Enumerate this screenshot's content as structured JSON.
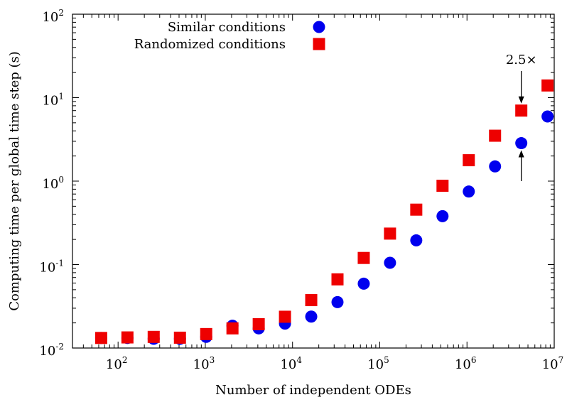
{
  "chart_data": {
    "type": "scatter",
    "title": "",
    "xlabel": "Number of independent ODEs",
    "ylabel": "Computing time per global time step (s)",
    "xscale": "log",
    "yscale": "log",
    "xlim": [
      30,
      10000000
    ],
    "ylim": [
      0.01,
      100
    ],
    "x_ticks": [
      {
        "base": "10",
        "exp": "2",
        "value": 100
      },
      {
        "base": "10",
        "exp": "3",
        "value": 1000
      },
      {
        "base": "10",
        "exp": "4",
        "value": 10000
      },
      {
        "base": "10",
        "exp": "5",
        "value": 100000
      },
      {
        "base": "10",
        "exp": "6",
        "value": 1000000
      },
      {
        "base": "10",
        "exp": "7",
        "value": 10000000
      }
    ],
    "y_ticks": [
      {
        "base": "10",
        "exp": "-2",
        "value": 0.01
      },
      {
        "base": "10",
        "exp": "-1",
        "value": 0.1
      },
      {
        "base": "10",
        "exp": "0",
        "value": 1
      },
      {
        "base": "10",
        "exp": "1",
        "value": 10
      },
      {
        "base": "10",
        "exp": "2",
        "value": 100
      }
    ],
    "grid": false,
    "legend_position": "top-left",
    "series": [
      {
        "name": "Similar conditions",
        "marker": "circle",
        "color": "#0000ee",
        "points": [
          {
            "x": 64,
            "y": 0.0132
          },
          {
            "x": 128,
            "y": 0.0132
          },
          {
            "x": 256,
            "y": 0.0129
          },
          {
            "x": 512,
            "y": 0.0129
          },
          {
            "x": 1024,
            "y": 0.0136
          },
          {
            "x": 2048,
            "y": 0.0185
          },
          {
            "x": 4096,
            "y": 0.0172
          },
          {
            "x": 8192,
            "y": 0.0196
          },
          {
            "x": 16384,
            "y": 0.0238
          },
          {
            "x": 32768,
            "y": 0.0355
          },
          {
            "x": 65536,
            "y": 0.059
          },
          {
            "x": 131072,
            "y": 0.105
          },
          {
            "x": 262144,
            "y": 0.195
          },
          {
            "x": 524288,
            "y": 0.38
          },
          {
            "x": 1048576,
            "y": 0.75
          },
          {
            "x": 2097152,
            "y": 1.5
          },
          {
            "x": 4194304,
            "y": 2.85
          },
          {
            "x": 8388608,
            "y": 5.95
          }
        ]
      },
      {
        "name": "Randomized conditions",
        "marker": "square",
        "color": "#ee0000",
        "points": [
          {
            "x": 64,
            "y": 0.0132
          },
          {
            "x": 128,
            "y": 0.0134
          },
          {
            "x": 256,
            "y": 0.0136
          },
          {
            "x": 512,
            "y": 0.0133
          },
          {
            "x": 1024,
            "y": 0.0147
          },
          {
            "x": 2048,
            "y": 0.0172
          },
          {
            "x": 4096,
            "y": 0.0193
          },
          {
            "x": 8192,
            "y": 0.0237
          },
          {
            "x": 16384,
            "y": 0.0375
          },
          {
            "x": 32768,
            "y": 0.0665
          },
          {
            "x": 65536,
            "y": 0.12
          },
          {
            "x": 131072,
            "y": 0.235
          },
          {
            "x": 262144,
            "y": 0.455
          },
          {
            "x": 524288,
            "y": 0.88
          },
          {
            "x": 1048576,
            "y": 1.78
          },
          {
            "x": 2097152,
            "y": 3.5
          },
          {
            "x": 4194304,
            "y": 7.0
          },
          {
            "x": 8388608,
            "y": 14.0
          }
        ]
      }
    ],
    "annotation": {
      "text": "2.5×",
      "x": 4194304,
      "y_top": 7.0,
      "y_bottom": 2.85
    }
  }
}
